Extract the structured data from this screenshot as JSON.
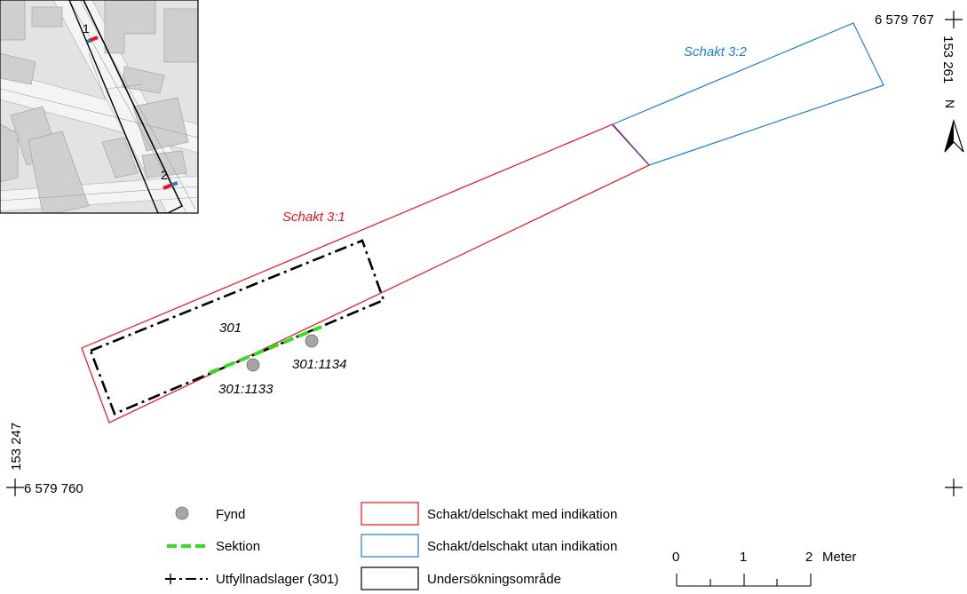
{
  "map": {
    "coordinates": {
      "top_right_northing": "6 579 767",
      "top_right_easting": "153 261",
      "bottom_left_northing": "6 579 760",
      "bottom_left_easting": "153 247"
    },
    "north_arrow_label": "N",
    "trench_labels": {
      "schakt_3_1": "Schakt 3:1",
      "schakt_3_2": "Schakt 3:2"
    },
    "feature_labels": {
      "layer": "301",
      "find_1": "301:1133",
      "find_2": "301:1134"
    },
    "inset": {
      "marker_1": "1",
      "marker_2": "2"
    },
    "colors": {
      "trench_with_indication": "#e8141c",
      "trench_without_indication": "#1f7fd8",
      "section": "#33dd22",
      "find": "#a6a6a6",
      "study_area": "#000000"
    }
  },
  "legend": {
    "items": [
      {
        "icon": "find-circle-icon",
        "label": "Fynd"
      },
      {
        "icon": "section-line-icon",
        "label": "Sektion"
      },
      {
        "icon": "fill-layer-line-icon",
        "label": "Utfyllnadslager (301)"
      },
      {
        "icon": "red-box-icon",
        "label": "Schakt/delschakt med indikation"
      },
      {
        "icon": "blue-box-icon",
        "label": "Schakt/delschakt utan indikation"
      },
      {
        "icon": "black-box-icon",
        "label": "Undersökningsområde"
      }
    ]
  },
  "scale_bar": {
    "ticks": [
      "0",
      "1",
      "2"
    ],
    "unit": "Meter"
  }
}
